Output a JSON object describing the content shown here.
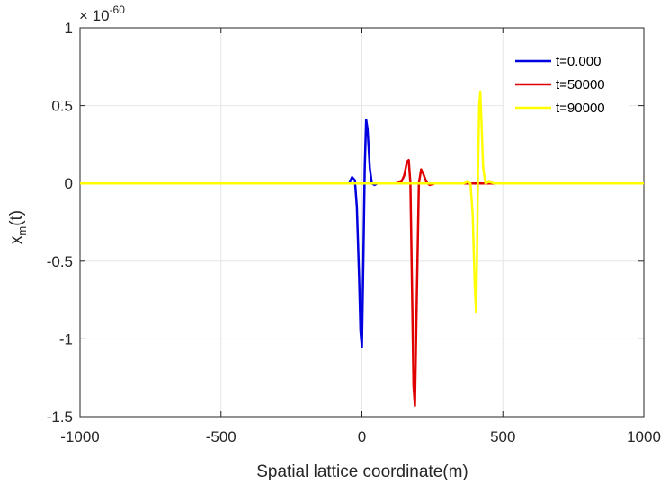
{
  "chart_data": {
    "type": "line",
    "title": "",
    "xlabel": "Spatial lattice coordinate(m)",
    "ylabel_main": "x",
    "ylabel_sub": "m",
    "ylabel_tail": "(t)",
    "exponent_prefix": "× 10",
    "exponent_power": "-60",
    "xlim": [
      -1000,
      1000
    ],
    "ylim": [
      -1.5,
      1
    ],
    "xticks": [
      -1000,
      -500,
      0,
      500,
      1000
    ],
    "xtick_labels": [
      "-1000",
      "-500",
      "0",
      "500",
      "1000"
    ],
    "yticks": [
      1,
      0.5,
      0,
      -0.5,
      -1,
      -1.5
    ],
    "ytick_labels": [
      "1",
      "0.5",
      "0",
      "-0.5",
      "-1",
      "-1.5"
    ],
    "grid": true,
    "legend_position": "top-right",
    "series": [
      {
        "name": "t=0.000",
        "color": "#0000e0",
        "x": [
          -1000,
          -45,
          -35,
          -25,
          -18,
          -10,
          -5,
          0,
          5,
          10,
          15,
          20,
          28,
          35,
          45,
          55,
          70,
          1000
        ],
        "y": [
          0,
          0,
          0.04,
          0.02,
          -0.15,
          -0.6,
          -0.95,
          -1.05,
          -0.5,
          0.1,
          0.41,
          0.35,
          0.1,
          0.0,
          -0.01,
          0.0,
          0,
          0
        ]
      },
      {
        "name": "t=50000",
        "color": "#e00000",
        "x": [
          -1000,
          120,
          140,
          150,
          160,
          166,
          172,
          178,
          183,
          188,
          195,
          202,
          210,
          218,
          228,
          240,
          260,
          1000
        ],
        "y": [
          0,
          0,
          0.01,
          0.05,
          0.14,
          0.15,
          0.0,
          -0.7,
          -1.3,
          -1.43,
          -0.7,
          0.0,
          0.09,
          0.06,
          0.01,
          -0.01,
          0,
          0
        ]
      },
      {
        "name": "t=90000",
        "color": "#ffff00",
        "x": [
          -1000,
          360,
          375,
          385,
          393,
          400,
          405,
          408,
          412,
          416,
          420,
          424,
          430,
          438,
          450,
          470,
          1000
        ],
        "y": [
          0,
          0,
          0.01,
          0.0,
          -0.2,
          -0.65,
          -0.83,
          -0.5,
          0.1,
          0.5,
          0.59,
          0.4,
          0.1,
          0.0,
          0.01,
          0,
          0
        ]
      }
    ]
  }
}
